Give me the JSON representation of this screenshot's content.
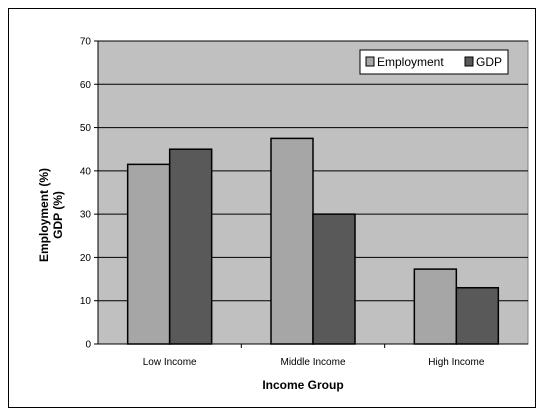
{
  "chart_data": {
    "type": "bar",
    "categories": [
      "Low Income",
      "Middle Income",
      "High Income"
    ],
    "series": [
      {
        "name": "Employment",
        "values": [
          41.5,
          47.5,
          17.3
        ],
        "color": "#a6a6a6"
      },
      {
        "name": "GDP",
        "values": [
          45,
          30,
          13
        ],
        "color": "#595959"
      }
    ],
    "xlabel": "Income Group",
    "ylabel_lines": [
      "Employment (%)",
      "GDP (%)"
    ],
    "ylim": [
      0,
      70
    ],
    "yticks": [
      0,
      10,
      20,
      30,
      40,
      50,
      60,
      70
    ],
    "grid": true,
    "legend_position": "top-right",
    "plot_background": "#c0c0c0"
  }
}
